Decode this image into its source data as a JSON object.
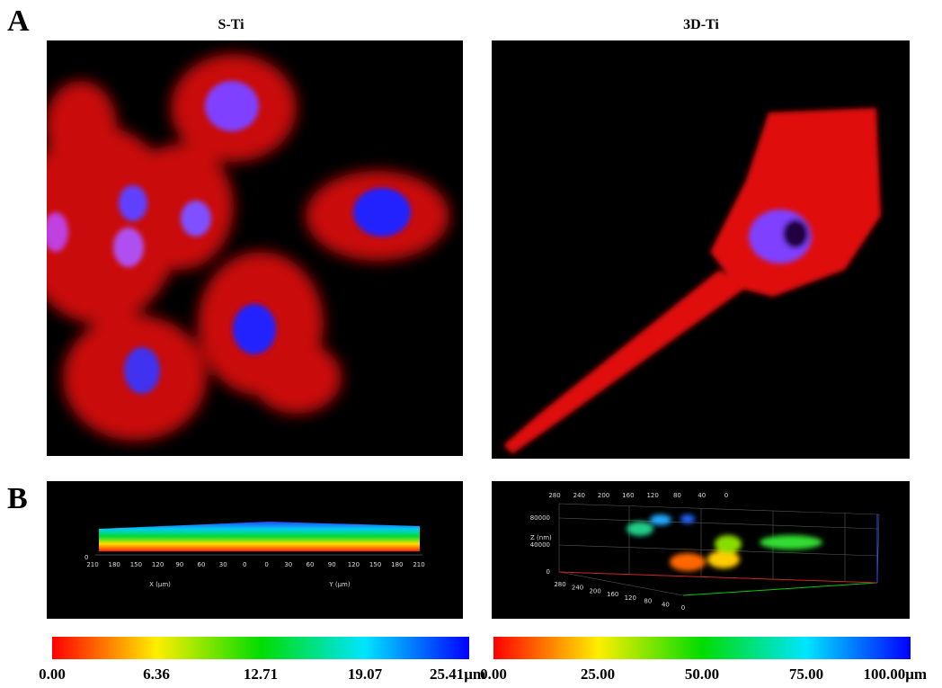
{
  "panel_a": {
    "letter": "A",
    "left_title": "S-Ti",
    "right_title": "3D-Ti"
  },
  "panel_b": {
    "letter": "B",
    "left_plot": {
      "x_ticks": [
        "210",
        "180",
        "150",
        "120",
        "90",
        "60",
        "30",
        "0",
        "0",
        "30",
        "60",
        "90",
        "120",
        "150",
        "180",
        "210"
      ],
      "z_zero": "0",
      "x_label": "X (μm)",
      "y_label": "Y (μm)"
    },
    "right_plot": {
      "top_ticks": [
        "280",
        "240",
        "200",
        "160",
        "120",
        "80",
        "40",
        "0"
      ],
      "z_label": "Z (nm)",
      "z_ticks": [
        "80000",
        "40000",
        "0"
      ],
      "bottom_ticks": [
        "280",
        "240",
        "200",
        "160",
        "120",
        "80",
        "40",
        "0"
      ]
    }
  },
  "colorbars": [
    {
      "labels": [
        "0.00",
        "6.36",
        "12.71",
        "19.07",
        "25.41μm"
      ]
    },
    {
      "labels": [
        "0.00",
        "25.00",
        "50.00",
        "75.00",
        "100.00μm"
      ]
    }
  ]
}
